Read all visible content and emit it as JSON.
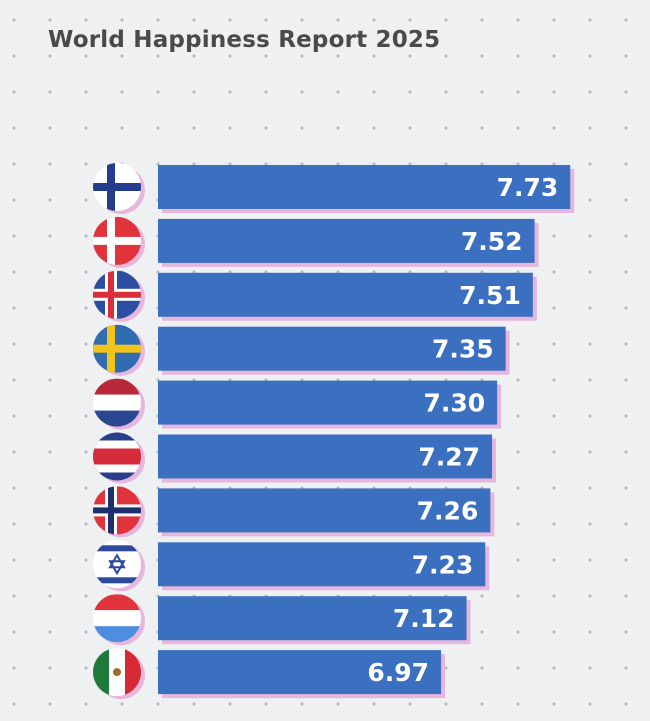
{
  "chart_data": {
    "type": "bar",
    "orientation": "horizontal",
    "title": "World Happiness Report 2025",
    "categories": [
      "finland-flag-icon",
      "denmark-flag-icon",
      "iceland-flag-icon",
      "sweden-flag-icon",
      "netherlands-flag-icon",
      "costa-rica-flag-icon",
      "norway-flag-icon",
      "israel-flag-icon",
      "luxembourg-flag-icon",
      "mexico-flag-icon"
    ],
    "values": [
      7.73,
      7.52,
      7.51,
      7.35,
      7.3,
      7.27,
      7.26,
      7.23,
      7.12,
      6.97
    ],
    "labels": [
      "7.73",
      "7.52",
      "7.51",
      "7.35",
      "7.30",
      "7.27",
      "7.26",
      "7.23",
      "7.12",
      "6.97"
    ],
    "xlim": [
      5.3,
      7.8
    ],
    "grid": false,
    "colors": {
      "bar": "#3b6fc0",
      "shadow": "#e7b6dc",
      "label": "#ffffff"
    }
  }
}
